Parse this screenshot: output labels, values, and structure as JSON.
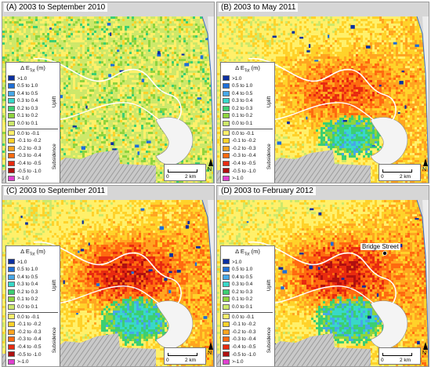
{
  "figure": {
    "panels": [
      {
        "id": "A",
        "title": "(A) 2003 to September 2010",
        "bridge_label": ""
      },
      {
        "id": "B",
        "title": "(B) 2003 to May 2011",
        "bridge_label": ""
      },
      {
        "id": "C",
        "title": "(C) 2003 to September 2011",
        "bridge_label": ""
      },
      {
        "id": "D",
        "title": "(D) 2003 to February 2012",
        "bridge_label": "Bridge Street"
      }
    ],
    "legend": {
      "header_prefix": "Δ E",
      "header_sub": "Tot",
      "header_unit": " (m)",
      "uplift_label": "Uplift",
      "subsidence_label": "Subsidence",
      "uplift_classes": [
        {
          "label": ">1.0",
          "color": "#0b2fa0"
        },
        {
          "label": "0.5 to 1.0",
          "color": "#1e6fd8"
        },
        {
          "label": "0.4 to 0.5",
          "color": "#46a8e8"
        },
        {
          "label": "0.3 to 0.4",
          "color": "#38d8c8"
        },
        {
          "label": "0.2 to 0.3",
          "color": "#3ccf72"
        },
        {
          "label": "0.1 to 0.2",
          "color": "#8fd43e"
        },
        {
          "label": "0.0 to 0.1",
          "color": "#cde86a"
        }
      ],
      "subsidence_classes": [
        {
          "label": "0.0 to -0.1",
          "color": "#fff06a"
        },
        {
          "label": "-0.1 to -0.2",
          "color": "#ffd22a"
        },
        {
          "label": "-0.2 to -0.3",
          "color": "#ffa520"
        },
        {
          "label": "-0.3 to -0.4",
          "color": "#ff6a10"
        },
        {
          "label": "-0.4 to -0.5",
          "color": "#e82a10"
        },
        {
          "label": "-0.5 to -1.0",
          "color": "#b01010"
        },
        {
          "label": ">-1.0",
          "color": "#e040d0"
        }
      ]
    },
    "scale": {
      "zero": "0",
      "end": "2 km"
    },
    "north_label": "N",
    "panel_intensity": [
      0.25,
      0.8,
      1.0,
      1.0
    ]
  }
}
